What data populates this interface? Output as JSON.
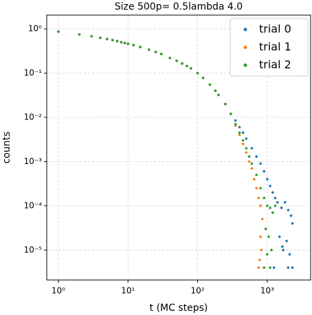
{
  "chart_data": {
    "type": "scatter",
    "title": "Size 500p= 0.5lambda 4.0",
    "xlabel": "t (MC steps)",
    "ylabel": "counts",
    "xscale": "log",
    "yscale": "log",
    "grid": true,
    "legend": "upper right",
    "xlim": [
      0.68,
      4200
    ],
    "ylim": [
      2.1e-06,
      2.05
    ],
    "xticks": [
      {
        "value": 1,
        "label": "10⁰"
      },
      {
        "value": 10,
        "label": "10¹"
      },
      {
        "value": 100,
        "label": "10²"
      },
      {
        "value": 1000,
        "label": "10³"
      }
    ],
    "yticks": [
      {
        "value": 1e-05,
        "label": "10⁻⁵"
      },
      {
        "value": 0.0001,
        "label": "10⁻⁴"
      },
      {
        "value": 0.001,
        "label": "10⁻³"
      },
      {
        "value": 0.01,
        "label": "10⁻²"
      },
      {
        "value": 0.1,
        "label": "10⁻¹"
      },
      {
        "value": 1,
        "label": "10⁰"
      }
    ],
    "series": [
      {
        "name": "trial 0",
        "color": "#1f77b4",
        "x": [
          1,
          2,
          3,
          4,
          5,
          6,
          7,
          8,
          9,
          10,
          12,
          15,
          20,
          25,
          30,
          40,
          50,
          60,
          70,
          80,
          100,
          120,
          150,
          180,
          200,
          250,
          300,
          350,
          400,
          450,
          500,
          600,
          700,
          800,
          900,
          1000,
          1100,
          1200,
          1300,
          1400,
          1600,
          1800,
          2000,
          2200,
          2300,
          1500,
          1700,
          1900,
          2100,
          2300,
          1250,
          2000,
          1650
        ],
        "values": [
          0.87,
          0.75,
          0.68,
          0.63,
          0.59,
          0.56,
          0.53,
          0.5,
          0.48,
          0.46,
          0.43,
          0.39,
          0.34,
          0.3,
          0.27,
          0.22,
          0.19,
          0.165,
          0.145,
          0.128,
          0.1,
          0.078,
          0.055,
          0.04,
          0.032,
          0.02,
          0.012,
          0.0085,
          0.006,
          0.0045,
          0.0033,
          0.002,
          0.0013,
          0.0009,
          0.0006,
          0.0004,
          0.00028,
          0.0002,
          0.00015,
          0.00012,
          9e-05,
          0.00012,
          8e-05,
          6e-05,
          4e-05,
          2e-05,
          1e-05,
          1.6e-05,
          8e-06,
          4e-06,
          4e-06,
          4e-06,
          1.2e-05
        ]
      },
      {
        "name": "trial 1",
        "color": "#ff7f0e",
        "x": [
          1,
          2,
          3,
          4,
          5,
          6,
          7,
          8,
          9,
          10,
          12,
          15,
          20,
          25,
          30,
          40,
          50,
          60,
          70,
          80,
          100,
          120,
          150,
          180,
          200,
          250,
          300,
          350,
          400,
          450,
          500,
          550,
          600,
          650,
          700,
          750,
          800,
          850,
          800,
          820,
          780,
          750
        ],
        "values": [
          0.87,
          0.75,
          0.68,
          0.63,
          0.59,
          0.56,
          0.53,
          0.5,
          0.48,
          0.46,
          0.43,
          0.39,
          0.34,
          0.3,
          0.27,
          0.22,
          0.19,
          0.165,
          0.145,
          0.128,
          0.1,
          0.078,
          0.055,
          0.04,
          0.032,
          0.02,
          0.012,
          0.0065,
          0.004,
          0.0025,
          0.0016,
          0.001,
          0.0007,
          0.0004,
          0.00025,
          0.00015,
          0.0001,
          5e-05,
          2e-05,
          1e-05,
          6e-06,
          4e-06
        ]
      },
      {
        "name": "trial 2",
        "color": "#2ca02c",
        "x": [
          1,
          2,
          3,
          4,
          5,
          6,
          7,
          8,
          9,
          10,
          12,
          15,
          20,
          25,
          30,
          40,
          50,
          60,
          70,
          80,
          100,
          120,
          150,
          180,
          200,
          250,
          300,
          350,
          400,
          450,
          500,
          550,
          600,
          700,
          800,
          900,
          1000,
          1100,
          1200,
          1300,
          950,
          1050,
          1150,
          900,
          1100,
          1000
        ],
        "values": [
          0.87,
          0.75,
          0.68,
          0.63,
          0.59,
          0.56,
          0.53,
          0.5,
          0.48,
          0.46,
          0.43,
          0.39,
          0.34,
          0.3,
          0.27,
          0.22,
          0.19,
          0.165,
          0.145,
          0.128,
          0.1,
          0.078,
          0.055,
          0.04,
          0.032,
          0.02,
          0.012,
          0.007,
          0.0045,
          0.003,
          0.002,
          0.0013,
          0.0009,
          0.0005,
          0.00025,
          0.00015,
          0.0001,
          9e-05,
          7e-05,
          0.0001,
          3e-05,
          2e-05,
          1e-05,
          4e-06,
          4e-06,
          8e-06
        ]
      }
    ]
  }
}
